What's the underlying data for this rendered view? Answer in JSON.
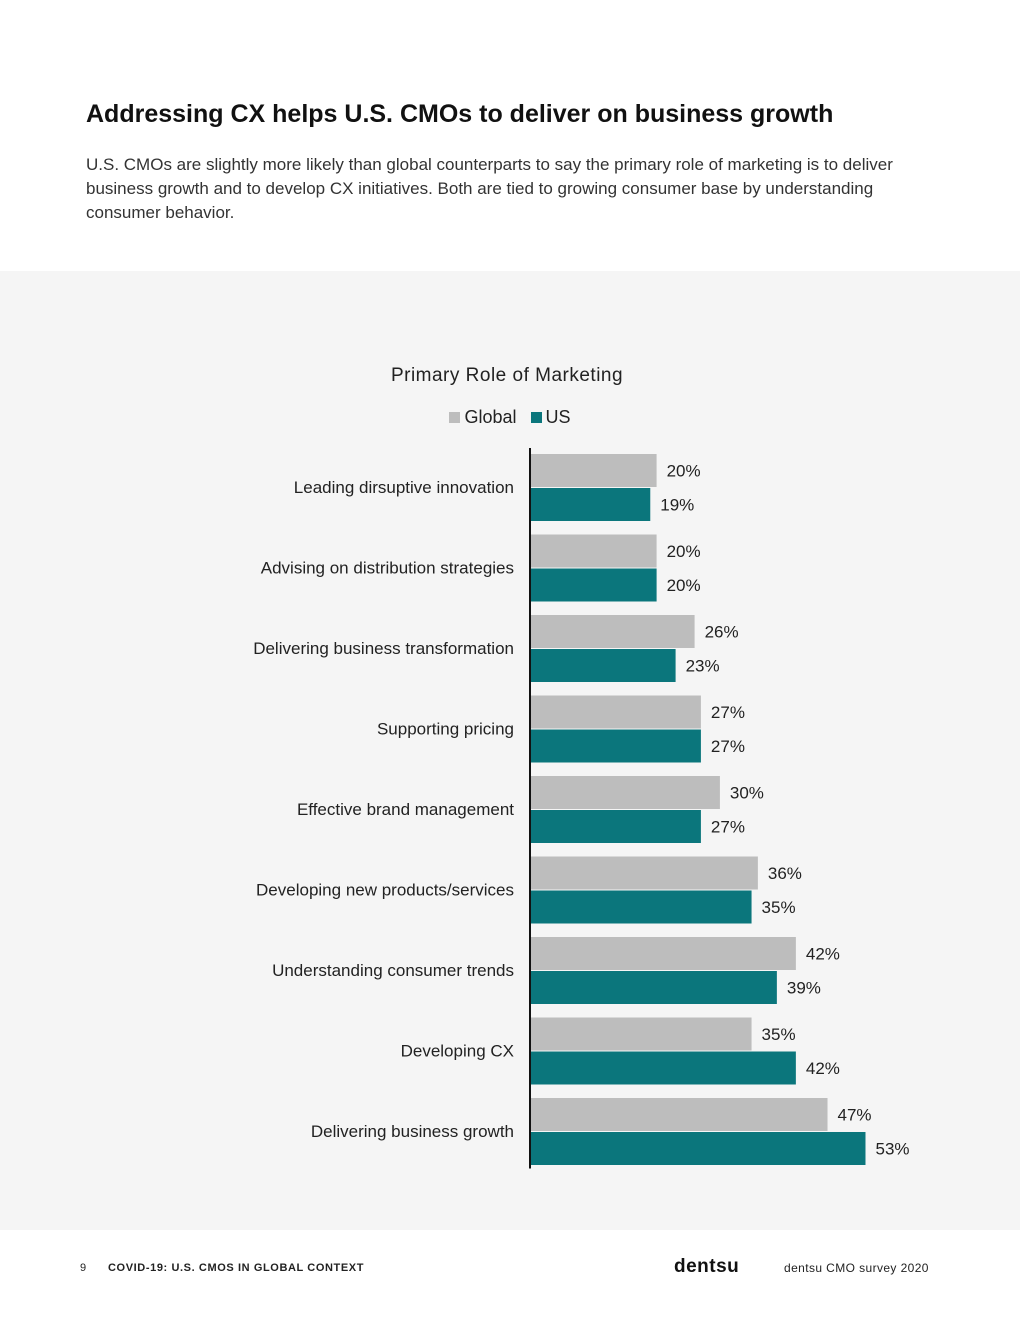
{
  "header": {
    "title": "Addressing CX helps U.S. CMOs to deliver on business growth",
    "intro": "U.S. CMOs are slightly more likely than global counterparts to say the primary role of marketing is to deliver business growth and to develop CX initiatives. Both are tied to growing consumer base by understanding consumer behavior."
  },
  "chart_data": {
    "type": "bar",
    "orientation": "horizontal",
    "title": "Primary Role of Marketing",
    "legend_position": "top",
    "categories": [
      "Leading dirsuptive innovation",
      "Advising on distribution strategies",
      "Delivering business transformation",
      "Supporting pricing",
      "Effective brand management",
      "Developing new products/services",
      "Understanding consumer trends",
      "Developing CX",
      "Delivering business growth"
    ],
    "series": [
      {
        "name": "Global",
        "color": "#bdbdbd",
        "values": [
          20,
          20,
          26,
          27,
          30,
          36,
          42,
          35,
          47
        ]
      },
      {
        "name": "US",
        "color": "#0b767c",
        "values": [
          19,
          20,
          23,
          27,
          27,
          35,
          39,
          42,
          53
        ]
      }
    ],
    "value_suffix": "%",
    "xlim": [
      0,
      60
    ],
    "grid": false
  },
  "footer": {
    "page_number": "9",
    "label": "COVID-19: U.S. CMOS IN GLOBAL CONTEXT",
    "logo": "dentsu",
    "survey": "dentsu CMO survey 2020"
  }
}
